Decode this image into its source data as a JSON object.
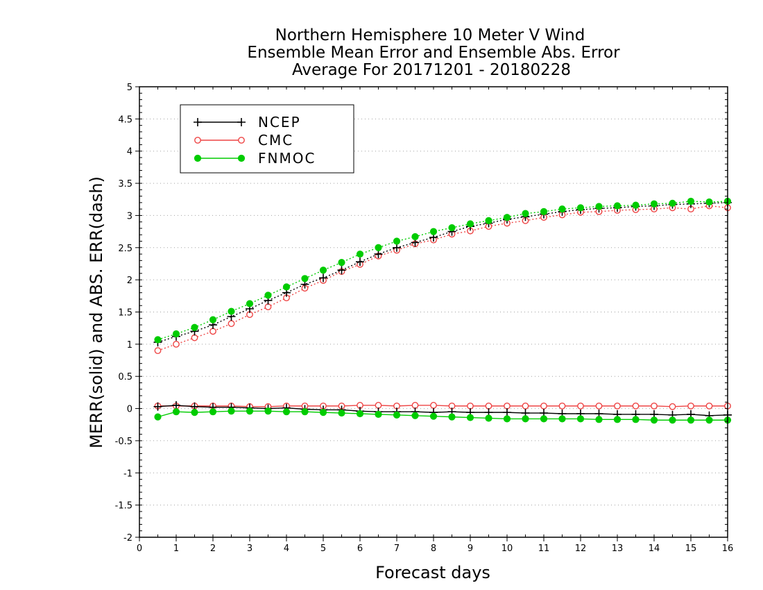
{
  "chart_data": {
    "type": "line",
    "title_lines": [
      "Northern Hemisphere 10 Meter V Wind",
      "Ensemble Mean Error and Ensemble Abs. Error",
      "Average For 20171201 - 20180228"
    ],
    "xlabel": "Forecast days",
    "ylabel": "MERR(solid) and ABS. ERR(dash)",
    "xlim": [
      0,
      16
    ],
    "ylim": [
      -2,
      5
    ],
    "x_ticks": [
      "0",
      "1",
      "2",
      "3",
      "4",
      "5",
      "6",
      "7",
      "8",
      "9",
      "10",
      "11",
      "12",
      "13",
      "14",
      "15",
      "16"
    ],
    "y_ticks": [
      "5",
      "4.5",
      "4",
      "3.5",
      "3",
      "2.5",
      "2",
      "1.5",
      "1",
      "0.5",
      "0",
      "-0.5",
      "-1",
      "-1.5",
      "-2"
    ],
    "grid": true,
    "legend_position": "top-left",
    "x": [
      0.5,
      1,
      1.5,
      2,
      2.5,
      3,
      3.5,
      4,
      4.5,
      5,
      5.5,
      6,
      6.5,
      7,
      7.5,
      8,
      8.5,
      9,
      9.5,
      10,
      10.5,
      11,
      11.5,
      12,
      12.5,
      13,
      13.5,
      14,
      14.5,
      15,
      15.5,
      16
    ],
    "series": [
      {
        "name": "NCEP",
        "color": "#000000",
        "marker": "plus",
        "merr": [
          0.03,
          0.05,
          0.03,
          0.02,
          0.02,
          0.01,
          0.0,
          0.01,
          -0.01,
          -0.02,
          -0.02,
          -0.04,
          -0.05,
          -0.05,
          -0.05,
          -0.06,
          -0.05,
          -0.06,
          -0.06,
          -0.06,
          -0.07,
          -0.07,
          -0.08,
          -0.08,
          -0.08,
          -0.09,
          -0.09,
          -0.09,
          -0.1,
          -0.09,
          -0.11,
          -0.1
        ],
        "abs_err": [
          1.03,
          1.12,
          1.2,
          1.3,
          1.43,
          1.55,
          1.68,
          1.8,
          1.93,
          2.03,
          2.15,
          2.28,
          2.4,
          2.5,
          2.58,
          2.66,
          2.75,
          2.83,
          2.88,
          2.94,
          2.98,
          3.02,
          3.06,
          3.09,
          3.11,
          3.12,
          3.14,
          3.15,
          3.17,
          3.18,
          3.19,
          3.2
        ]
      },
      {
        "name": "CMC",
        "color": "#ee4444",
        "marker": "open-circle",
        "merr": [
          0.04,
          0.04,
          0.04,
          0.04,
          0.04,
          0.03,
          0.03,
          0.04,
          0.04,
          0.04,
          0.04,
          0.05,
          0.05,
          0.04,
          0.05,
          0.05,
          0.04,
          0.04,
          0.04,
          0.04,
          0.04,
          0.04,
          0.04,
          0.04,
          0.04,
          0.04,
          0.04,
          0.04,
          0.03,
          0.04,
          0.04,
          0.04
        ],
        "abs_err": [
          0.9,
          1.0,
          1.1,
          1.2,
          1.32,
          1.46,
          1.58,
          1.72,
          1.87,
          1.99,
          2.13,
          2.24,
          2.37,
          2.46,
          2.56,
          2.62,
          2.71,
          2.76,
          2.83,
          2.88,
          2.92,
          2.97,
          3.01,
          3.05,
          3.06,
          3.08,
          3.09,
          3.1,
          3.12,
          3.1,
          3.15,
          3.12
        ]
      },
      {
        "name": "FNMOC",
        "color": "#00cc00",
        "marker": "filled-circle",
        "merr": [
          -0.13,
          -0.05,
          -0.06,
          -0.05,
          -0.04,
          -0.04,
          -0.04,
          -0.05,
          -0.05,
          -0.06,
          -0.07,
          -0.08,
          -0.09,
          -0.1,
          -0.11,
          -0.12,
          -0.13,
          -0.14,
          -0.15,
          -0.16,
          -0.16,
          -0.16,
          -0.16,
          -0.16,
          -0.17,
          -0.17,
          -0.17,
          -0.18,
          -0.18,
          -0.18,
          -0.18,
          -0.18
        ],
        "abs_err": [
          1.07,
          1.16,
          1.26,
          1.38,
          1.51,
          1.63,
          1.76,
          1.89,
          2.02,
          2.15,
          2.27,
          2.4,
          2.5,
          2.6,
          2.67,
          2.75,
          2.81,
          2.87,
          2.92,
          2.97,
          3.03,
          3.06,
          3.1,
          3.12,
          3.14,
          3.15,
          3.16,
          3.18,
          3.19,
          3.22,
          3.21,
          3.22
        ]
      }
    ]
  }
}
